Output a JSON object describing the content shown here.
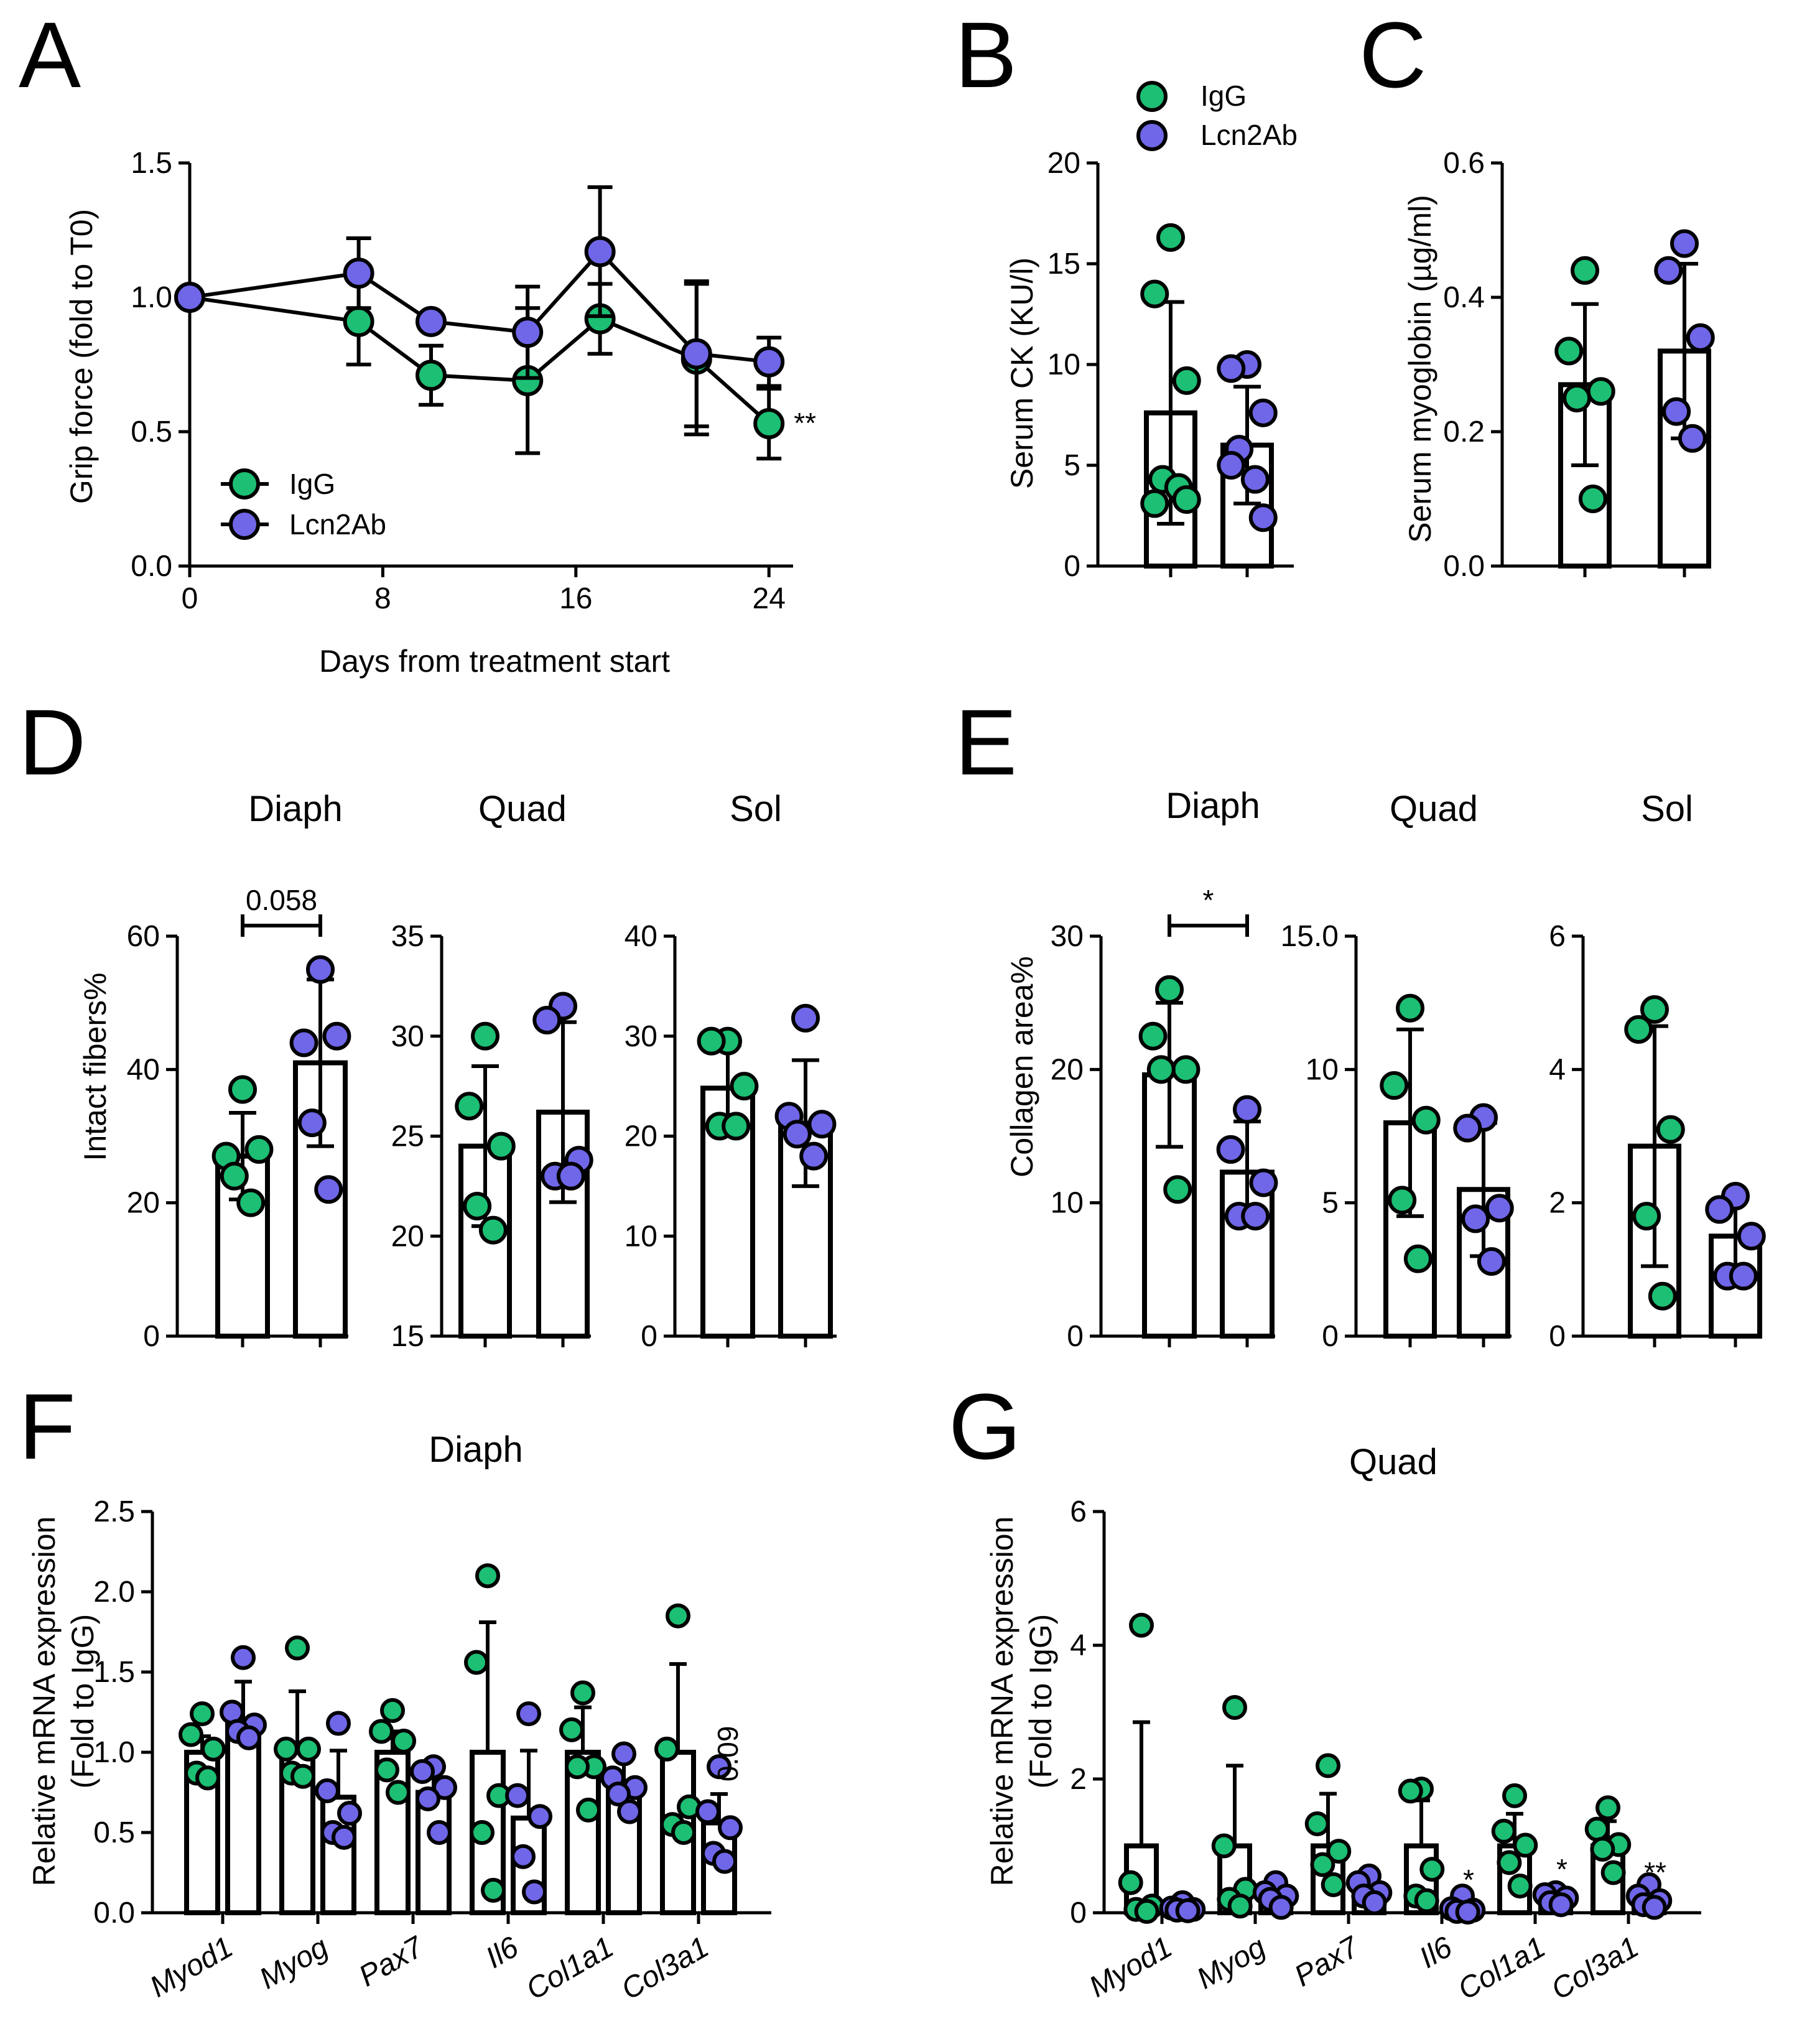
{
  "colors": {
    "IgG": "#1cbf73",
    "Lcn2Ab": "#6f66e8"
  },
  "panels": {
    "A": {
      "letter": "A"
    },
    "B": {
      "letter": "B"
    },
    "C": {
      "letter": "C"
    },
    "D": {
      "letter": "D",
      "titles": [
        "Diaph",
        "Quad",
        "Sol"
      ]
    },
    "E": {
      "letter": "E",
      "titles": [
        "Diaph",
        "Quad",
        "Sol"
      ]
    },
    "F": {
      "letter": "F",
      "title": "Diaph"
    },
    "G": {
      "letter": "G",
      "title": "Quad"
    }
  },
  "chart_data": [
    {
      "id": "A",
      "type": "line",
      "xlabel": "Days from treatment start",
      "ylabel": "Grip force (fold to T0)",
      "xlim": [
        0,
        25
      ],
      "ylim": [
        0,
        1.5
      ],
      "xticks": [
        "0",
        "8",
        "16",
        "24"
      ],
      "yticks": [
        "0.0",
        "0.5",
        "1.0",
        "1.5"
      ],
      "legend": [
        "IgG",
        "Lcn2Ab"
      ],
      "legend_position": "bottom-left",
      "annotation": "**",
      "series": [
        {
          "name": "IgG",
          "x": [
            0,
            7,
            10,
            14,
            17,
            21,
            24
          ],
          "y": [
            1.0,
            0.91,
            0.71,
            0.69,
            0.92,
            0.77,
            0.53
          ],
          "err": [
            0,
            0.16,
            0.11,
            0.27,
            0.13,
            0.28,
            0.13
          ]
        },
        {
          "name": "Lcn2Ab",
          "x": [
            0,
            7,
            10,
            14,
            17,
            21,
            24
          ],
          "y": [
            1.0,
            1.09,
            0.91,
            0.87,
            1.17,
            0.79,
            0.76
          ],
          "err": [
            0,
            0.13,
            0,
            0.17,
            0.24,
            0.27,
            0.09
          ]
        }
      ]
    },
    {
      "id": "B",
      "type": "bar",
      "ylabel": "Serum  CK (KU/l)",
      "ylim": [
        0,
        20
      ],
      "yticks": [
        "0",
        "5",
        "10",
        "15",
        "20"
      ],
      "legend": [
        "IgG",
        "Lcn2Ab"
      ],
      "legend_position": "top",
      "groups": [
        {
          "name": "IgG",
          "mean": 7.6,
          "sd": 5.5,
          "points": [
            16.3,
            13.5,
            9.2,
            4.3,
            3.9,
            3.1,
            3.3
          ]
        },
        {
          "name": "Lcn2Ab",
          "mean": 6.0,
          "sd": 2.9,
          "points": [
            10.0,
            9.8,
            7.6,
            5.8,
            4.3,
            5.0,
            2.4
          ]
        }
      ]
    },
    {
      "id": "C",
      "type": "bar",
      "ylabel": "Serum myoglobin (µg/ml)",
      "ylim": [
        0,
        0.6
      ],
      "yticks": [
        "0.0",
        "0.2",
        "0.4",
        "0.6"
      ],
      "groups": [
        {
          "name": "IgG",
          "mean": 0.27,
          "sd": 0.12,
          "points": [
            0.44,
            0.32,
            0.26,
            0.25,
            0.1
          ]
        },
        {
          "name": "Lcn2Ab",
          "mean": 0.32,
          "sd": 0.13,
          "points": [
            0.48,
            0.44,
            0.34,
            0.23,
            0.19
          ]
        }
      ]
    },
    {
      "id": "D1",
      "type": "bar",
      "subtitle": "Diaph",
      "ylabel": "Intact fibers%",
      "ylim": [
        0,
        60
      ],
      "yticks": [
        "0",
        "20",
        "40",
        "60"
      ],
      "annotation": "0.058",
      "groups": [
        {
          "name": "IgG",
          "mean": 27,
          "sd": 6.5,
          "points": [
            37,
            27,
            28,
            24,
            20
          ]
        },
        {
          "name": "Lcn2Ab",
          "mean": 41,
          "sd": 12.5,
          "points": [
            55,
            44,
            45,
            32,
            22
          ]
        }
      ]
    },
    {
      "id": "D2",
      "type": "bar",
      "subtitle": "Quad",
      "ylim": [
        15,
        35
      ],
      "yticks": [
        "15",
        "20",
        "25",
        "30",
        "35"
      ],
      "groups": [
        {
          "name": "IgG",
          "mean": 24.5,
          "sd": 4.0,
          "points": [
            30,
            26.5,
            24.5,
            21.5,
            20.3
          ]
        },
        {
          "name": "Lcn2Ab",
          "mean": 26.2,
          "sd": 4.5,
          "points": [
            31.5,
            30.8,
            23.8,
            23,
            23
          ]
        }
      ]
    },
    {
      "id": "D3",
      "type": "bar",
      "subtitle": "Sol",
      "ylim": [
        0,
        40
      ],
      "yticks": [
        "0",
        "10",
        "20",
        "30",
        "40"
      ],
      "groups": [
        {
          "name": "IgG",
          "mean": 24.8,
          "sd": 4.3,
          "points": [
            29.5,
            29.5,
            25,
            21,
            21
          ]
        },
        {
          "name": "Lcn2Ab",
          "mean": 21.3,
          "sd": 6.3,
          "points": [
            31.8,
            22,
            21.2,
            20.2,
            18
          ]
        }
      ]
    },
    {
      "id": "E1",
      "type": "bar",
      "subtitle": "Diaph",
      "ylabel": "Collagen area%",
      "ylim": [
        0,
        30
      ],
      "yticks": [
        "0",
        "10",
        "20",
        "30"
      ],
      "annotation": "*",
      "groups": [
        {
          "name": "IgG",
          "mean": 19.6,
          "sd": 5.4,
          "points": [
            26,
            22.5,
            20,
            20,
            11
          ]
        },
        {
          "name": "Lcn2Ab",
          "mean": 12.3,
          "sd": 3.8,
          "points": [
            17,
            14,
            11.5,
            9,
            9
          ]
        }
      ]
    },
    {
      "id": "E2",
      "type": "bar",
      "subtitle": "Quad",
      "ylim": [
        0,
        15
      ],
      "yticks": [
        "0",
        "5",
        "10",
        "15.0"
      ],
      "groups": [
        {
          "name": "IgG",
          "mean": 8.0,
          "sd": 3.5,
          "points": [
            12.3,
            9.4,
            8.1,
            5.1,
            2.9
          ]
        },
        {
          "name": "Lcn2Ab",
          "mean": 5.5,
          "sd": 2.5,
          "points": [
            8.2,
            7.8,
            4.8,
            4.4,
            2.8
          ]
        }
      ]
    },
    {
      "id": "E3",
      "type": "bar",
      "subtitle": "Sol",
      "ylim": [
        0,
        6
      ],
      "yticks": [
        "0",
        "2",
        "4",
        "6"
      ],
      "groups": [
        {
          "name": "IgG",
          "mean": 2.85,
          "sd": 1.8,
          "points": [
            4.9,
            4.6,
            3.1,
            1.8,
            0.6
          ]
        },
        {
          "name": "Lcn2Ab",
          "mean": 1.5,
          "sd": 0.6,
          "points": [
            2.1,
            1.9,
            1.5,
            0.9,
            0.9
          ]
        }
      ]
    },
    {
      "id": "F",
      "type": "bar",
      "title": "Diaph",
      "ylabel": [
        "Relative mRNA expression",
        "(Fold to IgG)"
      ],
      "ylim": [
        0,
        2.5
      ],
      "yticks": [
        "0.0",
        "0.5",
        "1.0",
        "1.5",
        "2.0",
        "2.5"
      ],
      "categories": [
        "Myod1",
        "Myog",
        "Pax7",
        "Il6",
        "Col1a1",
        "Col3a1"
      ],
      "annotations": [
        "",
        "",
        "",
        "",
        "",
        "0.09"
      ],
      "series": [
        {
          "name": "IgG",
          "mean": [
            1.0,
            1.0,
            1.0,
            1.0,
            1.0,
            1.0
          ],
          "sd": [
            0.1,
            0.38,
            0.13,
            0.81,
            0.28,
            0.55
          ],
          "points": [
            [
              1.24,
              1.11,
              1.02,
              0.87,
              0.84
            ],
            [
              1.65,
              1.02,
              1.02,
              0.87,
              0.85
            ],
            [
              1.26,
              1.13,
              1.07,
              0.89,
              0.75
            ],
            [
              2.1,
              1.56,
              0.73,
              0.5,
              0.14
            ],
            [
              1.37,
              1.14,
              0.91,
              0.91,
              0.64
            ],
            [
              1.85,
              1.02,
              0.66,
              0.55,
              0.5
            ]
          ]
        },
        {
          "name": "Lcn2Ab",
          "mean": [
            1.2,
            0.72,
            0.75,
            0.59,
            0.82,
            0.56
          ],
          "sd": [
            0.24,
            0.29,
            0.16,
            0.42,
            0.15,
            0.18
          ],
          "points": [
            [
              1.59,
              1.25,
              1.17,
              1.13,
              1.09
            ],
            [
              1.18,
              0.76,
              0.62,
              0.5,
              0.47
            ],
            [
              0.91,
              0.88,
              0.78,
              0.71,
              0.5
            ],
            [
              1.24,
              0.73,
              0.6,
              0.35,
              0.13
            ],
            [
              0.99,
              0.84,
              0.78,
              0.74,
              0.63
            ],
            [
              0.91,
              0.63,
              0.53,
              0.37,
              0.32
            ]
          ]
        }
      ]
    },
    {
      "id": "G",
      "type": "bar",
      "title": "Quad",
      "ylabel": [
        "Relative mRNA expression",
        "(Fold to IgG)"
      ],
      "ylim": [
        0,
        6
      ],
      "yticks": [
        "0",
        "2",
        "4",
        "6"
      ],
      "categories": [
        "Myod1",
        "Myog",
        "Pax7",
        "Il6",
        "Col1a1",
        "Col3a1"
      ],
      "annotations": [
        "",
        "",
        "",
        "*",
        "*",
        "**"
      ],
      "series": [
        {
          "name": "IgG",
          "mean": [
            1.0,
            1.0,
            1.0,
            1.0,
            1.0,
            1.0
          ],
          "sd": [
            1.85,
            1.2,
            0.78,
            0.68,
            0.48,
            0.37
          ],
          "points": [
            [
              4.3,
              0.45,
              0.1,
              0.05,
              0.02
            ],
            [
              3.07,
              1.0,
              0.35,
              0.2,
              0.1
            ],
            [
              2.2,
              1.33,
              0.92,
              0.72,
              0.42
            ],
            [
              1.85,
              1.82,
              0.65,
              0.25,
              0.18
            ],
            [
              1.75,
              1.22,
              1.01,
              0.75,
              0.4
            ],
            [
              1.57,
              1.25,
              1.02,
              0.95,
              0.6
            ]
          ]
        },
        {
          "name": "Lcn2Ab",
          "mean": [
            0.1,
            0.3,
            0.35,
            0.06,
            0.22,
            0.15
          ],
          "sd": [
            0.08,
            0.14,
            0.16,
            0.08,
            0.08,
            0.1
          ],
          "points": [
            [
              0.15,
              0.07,
              0.05,
              0.04,
              0.03
            ],
            [
              0.45,
              0.3,
              0.25,
              0.2,
              0.08
            ],
            [
              0.55,
              0.45,
              0.3,
              0.25,
              0.15
            ],
            [
              0.25,
              0.06,
              0.04,
              0.02,
              0.01
            ],
            [
              0.3,
              0.27,
              0.22,
              0.15,
              0.12
            ],
            [
              0.42,
              0.25,
              0.18,
              0.12,
              0.08
            ]
          ]
        }
      ]
    }
  ]
}
